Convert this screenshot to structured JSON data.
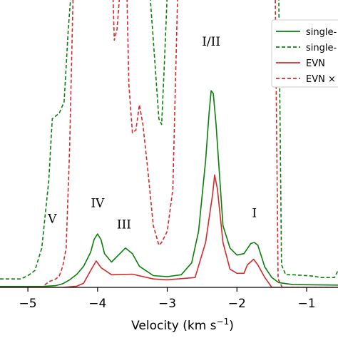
{
  "chart_data": {
    "type": "line",
    "xlabel": "Velocity (km s⁻¹)",
    "xlabel_main": "Velocity (km s",
    "xlabel_sup": "−1",
    "xlabel_close": ")",
    "xlim": [
      -5.4,
      -0.55
    ],
    "ylim": [
      0,
      1
    ],
    "xticks": [
      -5,
      -4,
      -3,
      -2,
      -1
    ],
    "xtick_labels": [
      "−5",
      "−4",
      "−3",
      "−2",
      "−1"
    ],
    "grid": false,
    "legend_position": "top-right",
    "colors": {
      "green": "#0a7f0a",
      "red": "#d42a2a"
    },
    "series": [
      {
        "name": "single-",
        "color": "#0a7f0a",
        "dash": false,
        "points": [
          [
            -5.4,
            0.003
          ],
          [
            -4.8,
            0.003
          ],
          [
            -4.6,
            0.006
          ],
          [
            -4.5,
            0.013
          ],
          [
            -4.4,
            0.027
          ],
          [
            -4.3,
            0.046
          ],
          [
            -4.2,
            0.075
          ],
          [
            -4.1,
            0.125
          ],
          [
            -4.05,
            0.17
          ],
          [
            -4.0,
            0.19
          ],
          [
            -3.95,
            0.17
          ],
          [
            -3.9,
            0.12
          ],
          [
            -3.8,
            0.09
          ],
          [
            -3.7,
            0.115
          ],
          [
            -3.6,
            0.14
          ],
          [
            -3.5,
            0.12
          ],
          [
            -3.4,
            0.075
          ],
          [
            -3.2,
            0.042
          ],
          [
            -3.0,
            0.038
          ],
          [
            -2.8,
            0.045
          ],
          [
            -2.65,
            0.087
          ],
          [
            -2.55,
            0.2
          ],
          [
            -2.45,
            0.45
          ],
          [
            -2.4,
            0.62
          ],
          [
            -2.37,
            0.7
          ],
          [
            -2.34,
            0.69
          ],
          [
            -2.3,
            0.58
          ],
          [
            -2.2,
            0.22
          ],
          [
            -2.1,
            0.14
          ],
          [
            -2.0,
            0.115
          ],
          [
            -1.9,
            0.12
          ],
          [
            -1.8,
            0.156
          ],
          [
            -1.75,
            0.16
          ],
          [
            -1.7,
            0.15
          ],
          [
            -1.6,
            0.072
          ],
          [
            -1.5,
            0.035
          ],
          [
            -1.4,
            0.017
          ],
          [
            -1.2,
            0.01
          ],
          [
            -0.55,
            0.008
          ]
        ]
      },
      {
        "name": "single-",
        "color": "#0a7f0a",
        "dash": true,
        "points": [
          [
            -5.4,
            0.03
          ],
          [
            -5.1,
            0.03
          ],
          [
            -5.0,
            0.042
          ],
          [
            -4.9,
            0.06
          ],
          [
            -4.8,
            0.14
          ],
          [
            -4.7,
            0.38
          ],
          [
            -4.65,
            0.6
          ],
          [
            -4.55,
            0.62
          ],
          [
            -4.48,
            0.66
          ],
          [
            -4.42,
            0.92
          ],
          [
            -4.38,
            1.05
          ],
          [
            -3.25,
            1.05
          ],
          [
            -3.2,
            0.88
          ],
          [
            -3.12,
            0.6
          ],
          [
            -3.08,
            0.58
          ],
          [
            -3.04,
            0.8
          ],
          [
            -3.0,
            1.05
          ],
          [
            -1.4,
            1.05
          ],
          [
            -1.36,
            0.08
          ],
          [
            -1.3,
            0.045
          ],
          [
            -1.2,
            0.045
          ],
          [
            -0.9,
            0.04
          ],
          [
            -0.8,
            0.035
          ],
          [
            -0.6,
            0.035
          ],
          [
            -0.55,
            0.06
          ]
        ]
      },
      {
        "name": "EVN",
        "color": "#d42a2a",
        "dash": false,
        "points": [
          [
            -5.4,
            0.0
          ],
          [
            -4.5,
            0.0
          ],
          [
            -4.3,
            0.004
          ],
          [
            -4.2,
            0.015
          ],
          [
            -4.1,
            0.06
          ],
          [
            -4.02,
            0.094
          ],
          [
            -3.95,
            0.07
          ],
          [
            -3.8,
            0.045
          ],
          [
            -3.5,
            0.047
          ],
          [
            -3.2,
            0.03
          ],
          [
            -3.0,
            0.027
          ],
          [
            -2.6,
            0.035
          ],
          [
            -2.45,
            0.16
          ],
          [
            -2.35,
            0.33
          ],
          [
            -2.32,
            0.4
          ],
          [
            -2.28,
            0.35
          ],
          [
            -2.2,
            0.16
          ],
          [
            -2.1,
            0.065
          ],
          [
            -2.0,
            0.05
          ],
          [
            -1.9,
            0.05
          ],
          [
            -1.85,
            0.08
          ],
          [
            -1.76,
            0.1
          ],
          [
            -1.7,
            0.08
          ],
          [
            -1.6,
            0.035
          ],
          [
            -1.5,
            0.0
          ],
          [
            -0.55,
            0.0
          ]
        ]
      },
      {
        "name": "EVN ×",
        "color": "#d42a2a",
        "dash": true,
        "points": [
          [
            -5.4,
            0.0
          ],
          [
            -4.8,
            0.0
          ],
          [
            -4.7,
            0.02
          ],
          [
            -4.6,
            0.03
          ],
          [
            -4.55,
            0.04
          ],
          [
            -4.5,
            0.075
          ],
          [
            -4.45,
            0.14
          ],
          [
            -4.4,
            0.5
          ],
          [
            -4.35,
            1.05
          ],
          [
            -3.78,
            1.05
          ],
          [
            -3.76,
            0.88
          ],
          [
            -3.72,
            0.92
          ],
          [
            -3.68,
            1.05
          ],
          [
            -3.58,
            1.05
          ],
          [
            -3.55,
            0.72
          ],
          [
            -3.5,
            0.55
          ],
          [
            -3.45,
            0.56
          ],
          [
            -3.4,
            0.65
          ],
          [
            -3.35,
            0.58
          ],
          [
            -3.28,
            0.42
          ],
          [
            -3.2,
            0.22
          ],
          [
            -3.12,
            0.15
          ],
          [
            -3.08,
            0.16
          ],
          [
            -3.0,
            0.2
          ],
          [
            -2.92,
            0.35
          ],
          [
            -2.85,
            1.05
          ],
          [
            -1.45,
            1.05
          ],
          [
            -1.41,
            0.03
          ],
          [
            -1.35,
            0.0
          ],
          [
            -0.55,
            0.0
          ]
        ]
      }
    ],
    "peak_labels": [
      {
        "text": "V",
        "x": -4.65,
        "y": 0.23
      },
      {
        "text": "IV",
        "x": -4.0,
        "y": 0.285
      },
      {
        "text": "III",
        "x": -3.62,
        "y": 0.21
      },
      {
        "text": "I/II",
        "x": -2.37,
        "y": 0.86
      },
      {
        "text": "I",
        "x": -1.75,
        "y": 0.25
      }
    ],
    "legend": [
      {
        "label": "single-",
        "color": "#0a7f0a",
        "dash": false
      },
      {
        "label": "single-",
        "color": "#0a7f0a",
        "dash": true
      },
      {
        "label": "EVN",
        "color": "#d42a2a",
        "dash": false
      },
      {
        "label": "EVN ×",
        "color": "#d42a2a",
        "dash": true
      }
    ]
  }
}
